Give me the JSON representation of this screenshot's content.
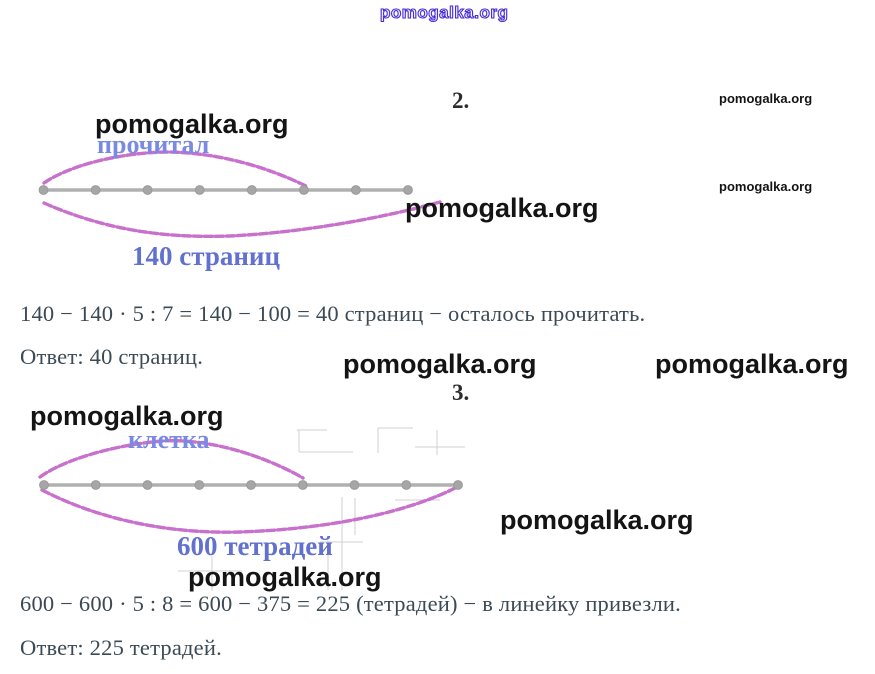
{
  "watermark_text": "pomogalka.org",
  "problems": [
    {
      "number": "2.",
      "diagram": {
        "top_brace_label": "прочитал",
        "bottom_brace_label": "140 страниц",
        "dot_count": 8,
        "segments_total": 7,
        "segments_covered_by_top_brace": 5
      },
      "solution_line": "140 − 140 · 5 : 7 = 140 − 100 = 40 страниц − осталось прочитать.",
      "answer_line": "Ответ: 40 страниц."
    },
    {
      "number": "3.",
      "diagram": {
        "top_brace_label": "клетка",
        "bottom_brace_label": "600 тетрадей",
        "dot_count": 9,
        "segments_total": 8,
        "segments_covered_by_top_brace": 5
      },
      "solution_line": "600 − 600 · 5 : 8 = 600 − 375 = 225 (тетрадей) − в линейку привезли.",
      "answer_line": "Ответ: 225 тетрадей."
    }
  ],
  "colors": {
    "solution_text": "#3b4a54",
    "brace_magenta": "#c468c9",
    "label_blue_light": "#7a89e2",
    "label_blue": "#6270d0",
    "number_line_gray": "#b0b0b0",
    "watermark_black": "#141414",
    "watermark_outline_purple": "#4a2fd4"
  }
}
